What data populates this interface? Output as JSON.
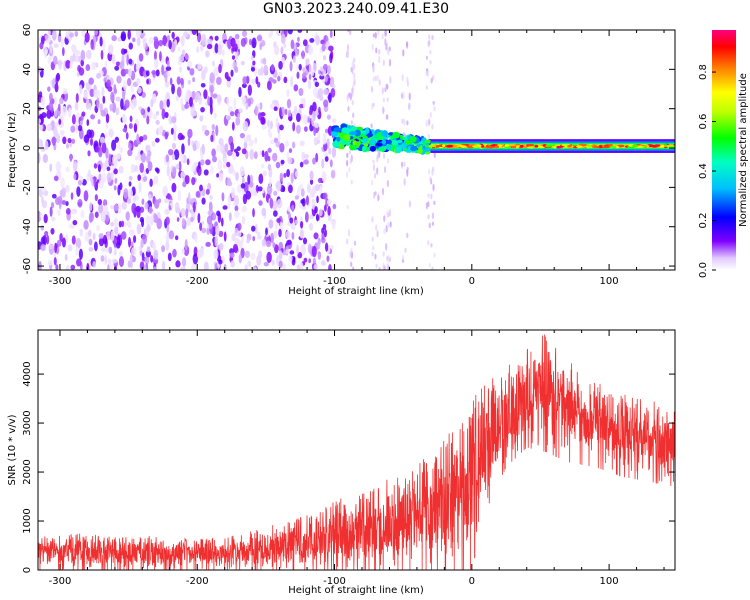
{
  "title": "GN03.2023.240.09.41.E30",
  "colors": {
    "snr_line": "#f03030",
    "frame": "#000000",
    "background": "#ffffff"
  },
  "chart_data": [
    {
      "type": "heatmap",
      "xlabel": "Height of straight line (km)",
      "ylabel": "Frequency (Hz)",
      "xlim": [
        -316,
        148
      ],
      "ylim": [
        -62,
        60
      ],
      "xticks": [
        -300,
        -200,
        -100,
        0,
        100
      ],
      "yticks": [
        -60,
        -40,
        -20,
        0,
        20,
        40,
        60
      ],
      "colorbar": {
        "label": "Normalized spectral amplitude",
        "range": [
          0,
          0.97
        ],
        "ticks": [
          0.0,
          0.2,
          0.4,
          0.6,
          0.8
        ],
        "colormap": [
          "#ffffff",
          "#7000ff",
          "#0000ff",
          "#00ffff",
          "#00ff00",
          "#ffff00",
          "#ff8000",
          "#ff0000",
          "#ff0080"
        ]
      },
      "regions": [
        {
          "x_range": [
            -316,
            -100
          ],
          "freq_range": [
            -62,
            60
          ],
          "amplitude_range": [
            0.02,
            0.15
          ]
        },
        {
          "x_range": [
            -100,
            -30
          ],
          "freq_range": [
            -5,
            12
          ],
          "amplitude_range": [
            0.2,
            0.6
          ]
        },
        {
          "x_range": [
            -30,
            148
          ],
          "freq_range": [
            -2,
            3
          ],
          "amplitude_range": [
            0.5,
            0.97
          ]
        }
      ]
    },
    {
      "type": "line",
      "xlabel": "Height of straight line (km)",
      "ylabel": "SNR (10 * v/v)",
      "xlim": [
        -316,
        148
      ],
      "ylim": [
        0,
        4900
      ],
      "xticks": [
        -300,
        -200,
        -100,
        0,
        100
      ],
      "yticks": [
        0,
        1000,
        2000,
        3000,
        4000
      ],
      "series": [
        {
          "envelope_x": [
            -316,
            -280,
            -240,
            -200,
            -175,
            -150,
            -125,
            -100,
            -80,
            -60,
            -40,
            -20,
            -10,
            0,
            10,
            25,
            40,
            55,
            70,
            90,
            110,
            130,
            148
          ],
          "envelope_low": [
            0,
            0,
            0,
            0,
            0,
            0,
            0,
            0,
            0,
            0,
            0,
            0,
            0,
            0,
            1200,
            2100,
            2500,
            2400,
            2200,
            2100,
            1900,
            1800,
            1700
          ],
          "envelope_high": [
            700,
            750,
            700,
            650,
            700,
            900,
            1100,
            1400,
            1700,
            1900,
            2200,
            2800,
            3100,
            3500,
            3800,
            4200,
            4600,
            4900,
            4300,
            3900,
            3700,
            3500,
            3300
          ]
        }
      ]
    }
  ]
}
